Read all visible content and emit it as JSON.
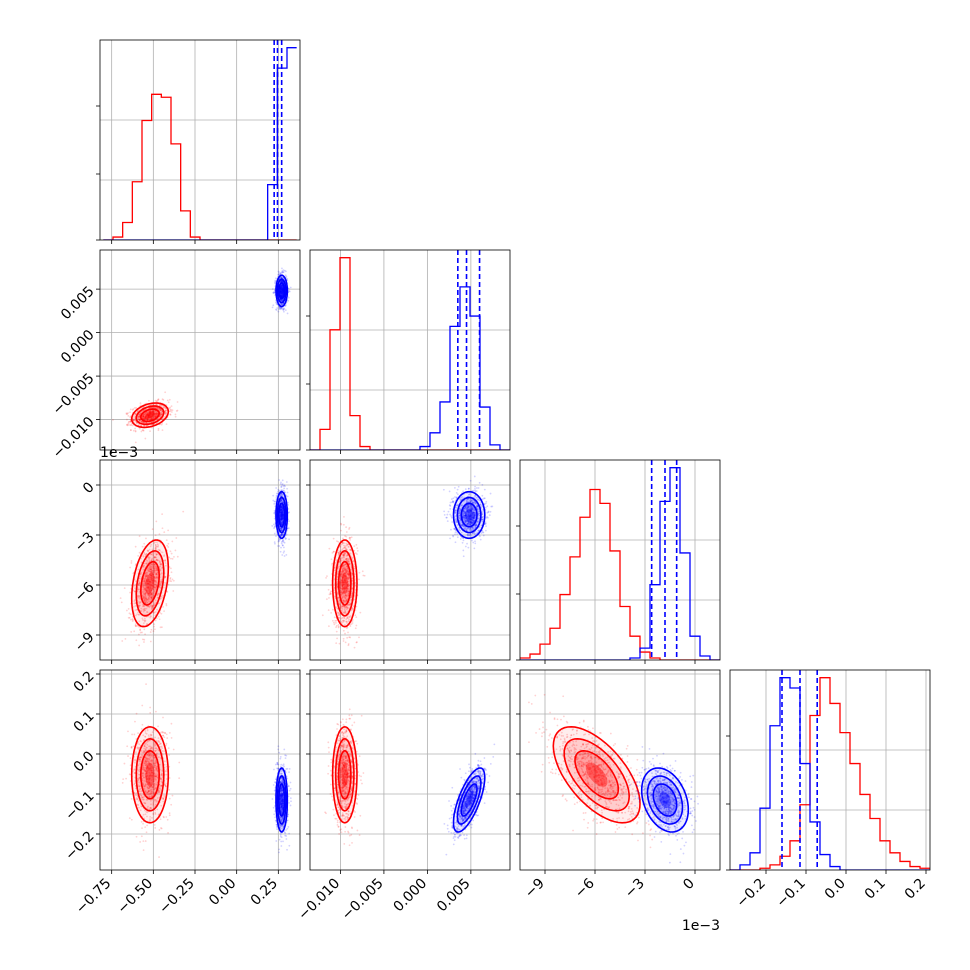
{
  "chart_data": {
    "type": "corner",
    "n_params": 4,
    "colors": {
      "a": "#ff0000",
      "b": "#0000ff"
    },
    "grid": true,
    "params": [
      {
        "range": [
          -0.82,
          0.38
        ],
        "ticks": [
          -0.75,
          -0.5,
          -0.25,
          0.0,
          0.25
        ],
        "tick_labels": [
          "−0.75",
          "−0.50",
          "−0.25",
          "0.00",
          "0.25"
        ],
        "offset_label": ""
      },
      {
        "range": [
          -0.0135,
          0.0095
        ],
        "ticks": [
          -0.01,
          -0.005,
          0.0,
          0.005
        ],
        "tick_labels": [
          "−0.010",
          "−0.005",
          "0.000",
          "0.005"
        ],
        "offset_label": ""
      },
      {
        "range": [
          -0.0105,
          0.0015
        ],
        "ticks": [
          -0.009,
          -0.006,
          -0.003,
          0.0
        ],
        "tick_labels": [
          "−9",
          "−6",
          "−3",
          "0"
        ],
        "offset_label": "1e−3"
      },
      {
        "range": [
          -0.29,
          0.21
        ],
        "ticks": [
          -0.2,
          -0.1,
          0.0,
          0.1,
          0.2
        ],
        "tick_labels": [
          "−0.2",
          "−0.1",
          "0.0",
          "0.1",
          "0.2"
        ],
        "offset_label": ""
      }
    ],
    "samples": {
      "a": {
        "mean": [
          -0.52,
          -0.0095,
          -0.0059,
          -0.052
        ],
        "std": [
          0.055,
          0.0007,
          0.0013,
          0.06
        ]
      },
      "b": {
        "mean": [
          0.27,
          0.0048,
          -0.0018,
          -0.115
        ],
        "std": [
          0.017,
          0.0009,
          0.0007,
          0.04
        ]
      }
    },
    "quantiles_b": [
      [
        0.225,
        0.245,
        0.27
      ],
      [
        0.0035,
        0.0045,
        0.006
      ],
      [
        -0.0026,
        -0.0018,
        -0.0011
      ],
      [
        -0.16,
        -0.115,
        -0.072
      ]
    ],
    "histograms": [
      {
        "bins": [
          -0.8,
          0.36
        ],
        "a": [
          0,
          2,
          12,
          40,
          82,
          100,
          98,
          66,
          20,
          2,
          0,
          0,
          0,
          0,
          0,
          0,
          0,
          0,
          0,
          0
        ],
        "b": [
          0,
          0,
          0,
          0,
          0,
          0,
          0,
          0,
          0,
          0,
          0,
          0,
          0,
          0,
          0,
          0,
          0,
          38,
          118,
          132
        ]
      },
      {
        "bins": [
          -0.0135,
          0.0095
        ],
        "a": [
          0,
          12,
          70,
          112,
          20,
          2,
          0,
          0,
          0,
          0,
          0,
          0,
          0,
          0,
          0,
          0,
          0,
          0,
          0,
          0
        ],
        "b": [
          0,
          0,
          0,
          0,
          0,
          0,
          0,
          0,
          0,
          0,
          0,
          2,
          10,
          28,
          72,
          95,
          78,
          25,
          3,
          0
        ]
      },
      {
        "bins": [
          -0.0105,
          0.0015
        ],
        "a": [
          1,
          3,
          8,
          16,
          33,
          52,
          72,
          86,
          79,
          55,
          27,
          12,
          4,
          1,
          0,
          0,
          0,
          0,
          0,
          0
        ],
        "b": [
          0,
          0,
          0,
          0,
          0,
          0,
          0,
          0,
          0,
          0,
          0,
          1,
          6,
          38,
          80,
          97,
          54,
          12,
          2,
          0
        ]
      },
      {
        "bins": [
          -0.29,
          0.21
        ],
        "a": [
          0,
          0,
          0,
          1,
          3,
          8,
          17,
          38,
          90,
          112,
          97,
          80,
          62,
          44,
          30,
          17,
          10,
          5,
          2,
          1
        ],
        "b": [
          0,
          3,
          10,
          36,
          84,
          112,
          106,
          62,
          28,
          9,
          2,
          0,
          0,
          0,
          0,
          0,
          0,
          0,
          0,
          0
        ]
      }
    ]
  }
}
